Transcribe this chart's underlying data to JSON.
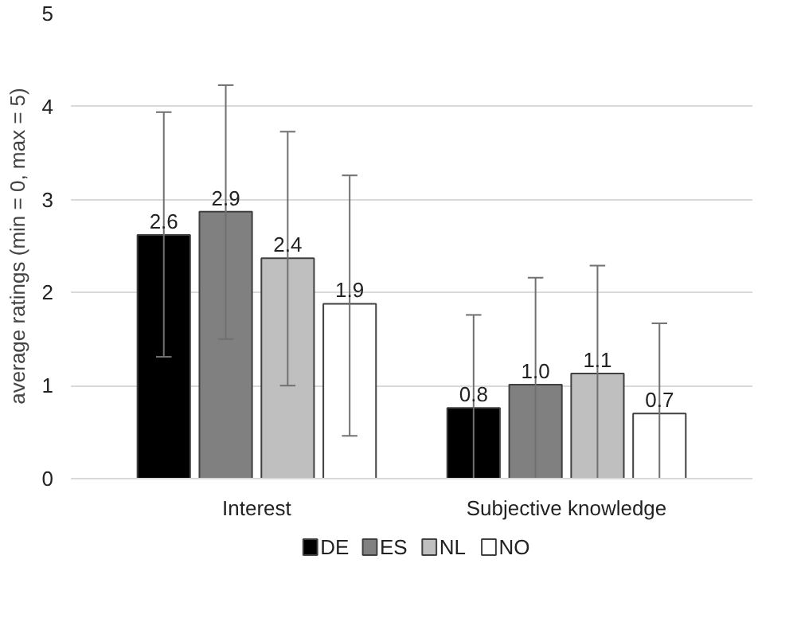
{
  "chart_data": {
    "type": "bar",
    "ylabel": "average ratings (min = 0, max = 5)",
    "categories": [
      "Interest",
      "Subjective knowledge"
    ],
    "series": [
      {
        "name": "DE",
        "color": "#000000",
        "values": [
          2.62,
          0.76
        ],
        "value_labels": [
          "2.6",
          "0.8"
        ],
        "errors": [
          [
            1.31,
            3.94
          ],
          [
            0,
            1.76
          ]
        ]
      },
      {
        "name": "ES",
        "color": "#808080",
        "values": [
          2.87,
          1.01
        ],
        "value_labels": [
          "2.9",
          "1.0"
        ],
        "errors": [
          [
            1.5,
            4.23
          ],
          [
            0,
            2.16
          ]
        ]
      },
      {
        "name": "NL",
        "color": "#bfbfbf",
        "values": [
          2.37,
          1.13
        ],
        "value_labels": [
          "2.4",
          "1.1"
        ],
        "errors": [
          [
            1.0,
            3.73
          ],
          [
            0,
            2.29
          ]
        ]
      },
      {
        "name": "NO",
        "color": "#ffffff",
        "values": [
          1.88,
          0.7
        ],
        "value_labels": [
          "1.9",
          "0.7"
        ],
        "errors": [
          [
            0.46,
            3.26
          ],
          [
            0,
            1.67
          ]
        ]
      }
    ],
    "ylim": [
      0,
      5
    ],
    "yticks": [
      0,
      1,
      2,
      3,
      4,
      5
    ],
    "grid": "y",
    "legend": "bottom"
  }
}
